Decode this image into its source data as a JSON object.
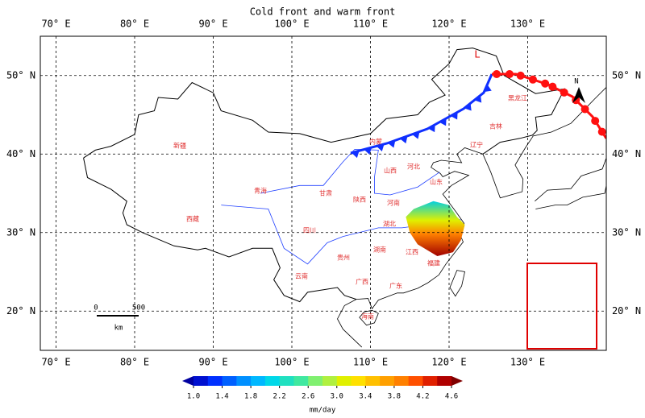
{
  "title": "Cold front and warm front",
  "map": {
    "lon_range": [
      68,
      140
    ],
    "lat_range": [
      15,
      55
    ],
    "lon_ticks": [
      {
        "value": 70,
        "label": "70° E"
      },
      {
        "value": 80,
        "label": "80° E"
      },
      {
        "value": 90,
        "label": "90° E"
      },
      {
        "value": 100,
        "label": "100° E"
      },
      {
        "value": 110,
        "label": "110° E"
      },
      {
        "value": 120,
        "label": "120° E"
      },
      {
        "value": 130,
        "label": "130° E"
      }
    ],
    "lat_ticks": [
      {
        "value": 20,
        "label": "20° N"
      },
      {
        "value": 30,
        "label": "30° N"
      },
      {
        "value": 40,
        "label": "40° N"
      },
      {
        "value": 50,
        "label": "50° N"
      }
    ],
    "low_label": "L",
    "north_label": "N",
    "scale_bar": {
      "start": "0",
      "end": "500",
      "unit": "km"
    },
    "province_labels": [
      "黑龙江",
      "吉林",
      "辽宁",
      "内蒙",
      "河北",
      "山西",
      "山东",
      "河南",
      "陕西",
      "甘肃",
      "青海",
      "新疆",
      "西藏",
      "四川",
      "湖北",
      "贵州",
      "湖南",
      "江西",
      "福建",
      "广西",
      "广东",
      "云南",
      "海南"
    ]
  },
  "colorbar": {
    "range": [
      1.0,
      4.6
    ],
    "ticks": [
      {
        "value": 1.0,
        "label": "1.0"
      },
      1.4,
      1.8,
      2.2,
      2.6,
      {
        "value": 3.0,
        "label": "3.0"
      },
      3.4,
      3.8,
      4.2,
      4.6
    ],
    "colors": [
      "#0010d0",
      "#0030ff",
      "#0060ff",
      "#0090ff",
      "#00b8ff",
      "#00d8e8",
      "#20e0c0",
      "#40e8a0",
      "#80f070",
      "#b0f040",
      "#e0f000",
      "#ffe000",
      "#ffc000",
      "#ffa000",
      "#ff8000",
      "#ff5000",
      "#e02000",
      "#b00000"
    ],
    "under_color": "#0000a0",
    "over_color": "#800000",
    "unit": "mm/day"
  }
}
